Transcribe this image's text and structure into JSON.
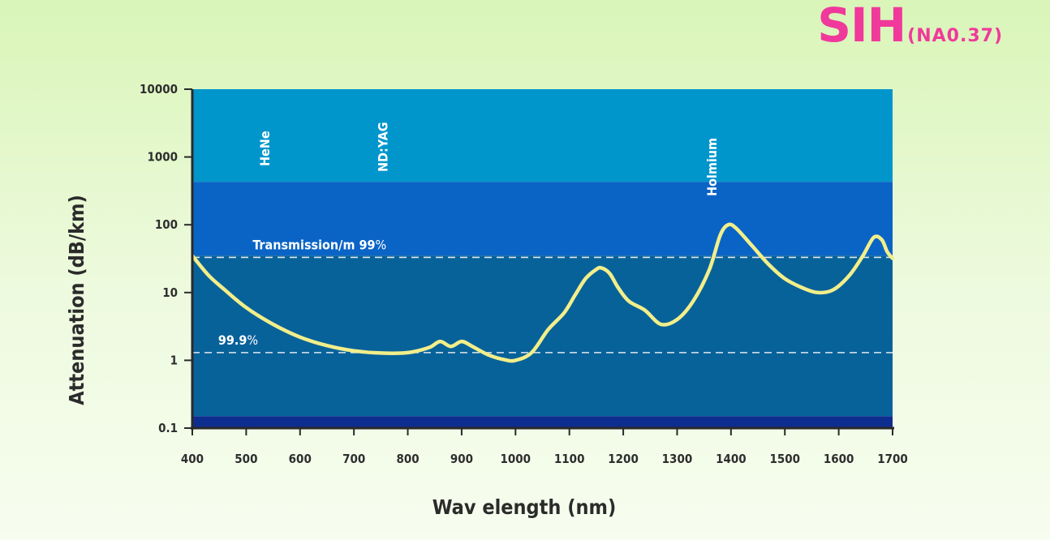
{
  "brand": {
    "main": "SIH",
    "sub": "(NA0.37)"
  },
  "chart_data": {
    "type": "line",
    "title": "SIH(NA0.37)",
    "xlabel": "Wav elength (nm)",
    "ylabel": "Attenuation (dB/km)",
    "xlim": [
      400,
      1700
    ],
    "ylim": [
      0.1,
      10000
    ],
    "y_scale": "log",
    "x_ticks": [
      400,
      500,
      600,
      700,
      800,
      900,
      1000,
      1100,
      1200,
      1300,
      1400,
      1500,
      1600,
      1700
    ],
    "x_tick_labels": [
      "400",
      "500",
      "600",
      "700",
      "800",
      "900",
      "1000",
      "1100",
      "1200",
      "1300",
      "1400",
      "1500",
      "1600",
      "1700"
    ],
    "y_ticks": [
      0.1,
      1,
      10,
      100,
      1000,
      10000
    ],
    "y_tick_labels": [
      "0.1",
      "1",
      "10",
      "100",
      "1000",
      "10000"
    ],
    "grid": false,
    "legend": "none",
    "background_bands": [
      {
        "y_from": 430,
        "y_to": 10000,
        "color": "#0096cc"
      },
      {
        "y_from": 35,
        "y_to": 430,
        "color": "#0a64c6"
      },
      {
        "y_from": 0.15,
        "y_to": 35,
        "color": "#08629a"
      },
      {
        "y_from": 0.1,
        "y_to": 0.15,
        "color": "#0d2e8f"
      }
    ],
    "reference_lines": [
      {
        "y": 33,
        "label_prefix": "Transmission/m ",
        "label_value": "99",
        "label_unit": "%",
        "label_x": 512
      },
      {
        "y": 1.3,
        "label_prefix": "",
        "label_value": "99.9",
        "label_unit": "%",
        "label_x": 448
      }
    ],
    "region_labels": [
      {
        "text": "HeNe",
        "x": 543
      },
      {
        "text": "ND:YAG",
        "x": 762
      },
      {
        "text": "Holmium",
        "x": 1373
      }
    ],
    "series": [
      {
        "color": "#f2ee8a",
        "x": [
          400,
          430,
          460,
          500,
          550,
          600,
          650,
          700,
          750,
          800,
          840,
          860,
          880,
          900,
          920,
          950,
          980,
          1000,
          1030,
          1060,
          1090,
          1110,
          1130,
          1150,
          1160,
          1175,
          1190,
          1210,
          1240,
          1270,
          1300,
          1330,
          1360,
          1380,
          1395,
          1410,
          1440,
          1470,
          1500,
          1530,
          1560,
          1590,
          1620,
          1645,
          1665,
          1680,
          1690,
          1700
        ],
        "y": [
          35,
          18,
          11,
          6,
          3.4,
          2.2,
          1.65,
          1.38,
          1.28,
          1.3,
          1.55,
          1.9,
          1.6,
          1.9,
          1.6,
          1.2,
          1.02,
          1.0,
          1.3,
          2.8,
          5,
          9,
          16,
          22,
          23,
          19,
          12,
          7.5,
          5.5,
          3.4,
          4,
          7.5,
          22,
          70,
          100,
          88,
          48,
          26,
          16,
          12,
          10,
          11,
          18,
          35,
          65,
          60,
          40,
          32
        ]
      }
    ]
  }
}
